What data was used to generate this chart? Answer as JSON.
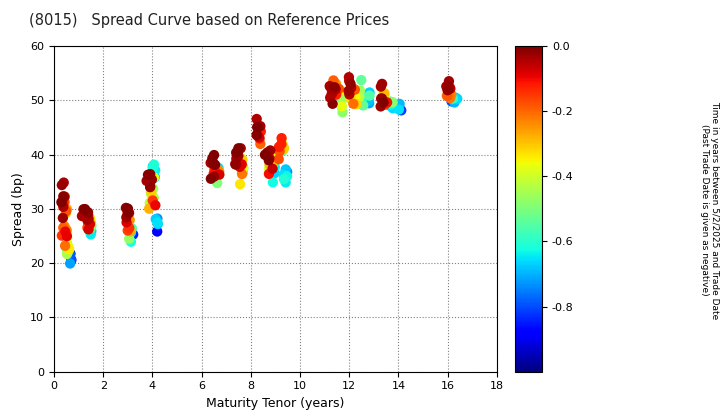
{
  "title": "(8015)   Spread Curve based on Reference Prices",
  "xlabel": "Maturity Tenor (years)",
  "ylabel": "Spread (bp)",
  "colorbar_label": "Time in years between 5/2/2025 and Trade Date\n(Past Trade Date is given as negative)",
  "xlim": [
    0,
    18
  ],
  "ylim": [
    0,
    60
  ],
  "xticks": [
    0,
    2,
    4,
    6,
    8,
    10,
    12,
    14,
    16,
    18
  ],
  "yticks": [
    0,
    10,
    20,
    30,
    40,
    50,
    60
  ],
  "cmap": "jet",
  "clim_min": -1.0,
  "clim_max": 0.0,
  "cticks": [
    0.0,
    -0.2,
    -0.4,
    -0.6,
    -0.8
  ],
  "marker_size": 55,
  "point_groups": [
    {
      "mc": 0.35,
      "sc": 32,
      "n": 8,
      "ms": 0.1,
      "sr": 8,
      "cr_min": -0.05,
      "cr_max": 0.0
    },
    {
      "mc": 0.45,
      "sc": 27,
      "n": 12,
      "ms": 0.12,
      "sr": 10,
      "cr_min": -0.3,
      "cr_max": -0.05
    },
    {
      "mc": 0.55,
      "sc": 23,
      "n": 10,
      "ms": 0.1,
      "sr": 6,
      "cr_min": -0.7,
      "cr_max": -0.3
    },
    {
      "mc": 0.65,
      "sc": 21,
      "n": 6,
      "ms": 0.08,
      "sr": 3,
      "cr_min": -0.95,
      "cr_max": -0.7
    },
    {
      "mc": 1.3,
      "sc": 29,
      "n": 8,
      "ms": 0.12,
      "sr": 4,
      "cr_min": -0.05,
      "cr_max": 0.0
    },
    {
      "mc": 1.4,
      "sc": 27,
      "n": 8,
      "ms": 0.12,
      "sr": 4,
      "cr_min": -0.4,
      "cr_max": -0.05
    },
    {
      "mc": 1.5,
      "sc": 26,
      "n": 6,
      "ms": 0.1,
      "sr": 3,
      "cr_min": -0.85,
      "cr_max": -0.4
    },
    {
      "mc": 2.95,
      "sc": 30,
      "n": 6,
      "ms": 0.1,
      "sr": 3,
      "cr_min": -0.05,
      "cr_max": 0.0
    },
    {
      "mc": 3.05,
      "sc": 27,
      "n": 8,
      "ms": 0.12,
      "sr": 4,
      "cr_min": -0.4,
      "cr_max": -0.05
    },
    {
      "mc": 3.15,
      "sc": 25,
      "n": 6,
      "ms": 0.1,
      "sr": 3,
      "cr_min": -0.9,
      "cr_max": -0.4
    },
    {
      "mc": 3.9,
      "sc": 35,
      "n": 6,
      "ms": 0.12,
      "sr": 4,
      "cr_min": -0.05,
      "cr_max": 0.0
    },
    {
      "mc": 4.0,
      "sc": 32,
      "n": 10,
      "ms": 0.15,
      "sr": 6,
      "cr_min": -0.5,
      "cr_max": -0.05
    },
    {
      "mc": 4.1,
      "sc": 37,
      "n": 6,
      "ms": 0.1,
      "sr": 4,
      "cr_min": -0.75,
      "cr_max": -0.5
    },
    {
      "mc": 4.2,
      "sc": 27,
      "n": 5,
      "ms": 0.1,
      "sr": 3,
      "cr_min": -0.9,
      "cr_max": -0.65
    },
    {
      "mc": 6.5,
      "sc": 38,
      "n": 8,
      "ms": 0.15,
      "sr": 4,
      "cr_min": -0.05,
      "cr_max": 0.0
    },
    {
      "mc": 6.6,
      "sc": 37,
      "n": 6,
      "ms": 0.12,
      "sr": 3,
      "cr_min": -0.4,
      "cr_max": -0.05
    },
    {
      "mc": 6.7,
      "sc": 36,
      "n": 5,
      "ms": 0.1,
      "sr": 3,
      "cr_min": -0.75,
      "cr_max": -0.4
    },
    {
      "mc": 7.5,
      "sc": 40,
      "n": 8,
      "ms": 0.15,
      "sr": 4,
      "cr_min": -0.05,
      "cr_max": 0.0
    },
    {
      "mc": 7.6,
      "sc": 38,
      "n": 8,
      "ms": 0.12,
      "sr": 4,
      "cr_min": -0.5,
      "cr_max": -0.05
    },
    {
      "mc": 7.7,
      "sc": 37,
      "n": 5,
      "ms": 0.1,
      "sr": 3,
      "cr_min": -0.8,
      "cr_max": -0.5
    },
    {
      "mc": 8.3,
      "sc": 45,
      "n": 6,
      "ms": 0.1,
      "sr": 3,
      "cr_min": -0.05,
      "cr_max": 0.0
    },
    {
      "mc": 8.35,
      "sc": 43,
      "n": 5,
      "ms": 0.08,
      "sr": 2,
      "cr_min": -0.3,
      "cr_max": -0.05
    },
    {
      "mc": 8.7,
      "sc": 40,
      "n": 6,
      "ms": 0.12,
      "sr": 4,
      "cr_min": -0.05,
      "cr_max": 0.0
    },
    {
      "mc": 8.8,
      "sc": 38,
      "n": 6,
      "ms": 0.12,
      "sr": 4,
      "cr_min": -0.45,
      "cr_max": -0.05
    },
    {
      "mc": 8.9,
      "sc": 37,
      "n": 5,
      "ms": 0.1,
      "sr": 3,
      "cr_min": -0.8,
      "cr_max": -0.45
    },
    {
      "mc": 9.2,
      "sc": 42,
      "n": 6,
      "ms": 0.12,
      "sr": 3,
      "cr_min": -0.25,
      "cr_max": -0.05
    },
    {
      "mc": 9.3,
      "sc": 41,
      "n": 5,
      "ms": 0.1,
      "sr": 3,
      "cr_min": -0.55,
      "cr_max": -0.25
    },
    {
      "mc": 9.4,
      "sc": 36,
      "n": 6,
      "ms": 0.1,
      "sr": 4,
      "cr_min": -0.85,
      "cr_max": -0.55
    },
    {
      "mc": 11.3,
      "sc": 51,
      "n": 8,
      "ms": 0.18,
      "sr": 3,
      "cr_min": -0.05,
      "cr_max": 0.0
    },
    {
      "mc": 11.5,
      "sc": 52,
      "n": 8,
      "ms": 0.18,
      "sr": 3,
      "cr_min": -0.35,
      "cr_max": -0.05
    },
    {
      "mc": 11.7,
      "sc": 50,
      "n": 6,
      "ms": 0.15,
      "sr": 3,
      "cr_min": -0.65,
      "cr_max": -0.35
    },
    {
      "mc": 12.0,
      "sc": 53,
      "n": 6,
      "ms": 0.15,
      "sr": 3,
      "cr_min": -0.05,
      "cr_max": 0.0
    },
    {
      "mc": 12.2,
      "sc": 51,
      "n": 6,
      "ms": 0.15,
      "sr": 3,
      "cr_min": -0.4,
      "cr_max": -0.05
    },
    {
      "mc": 12.5,
      "sc": 51,
      "n": 6,
      "ms": 0.15,
      "sr": 3,
      "cr_min": -0.65,
      "cr_max": -0.4
    },
    {
      "mc": 12.8,
      "sc": 50,
      "n": 5,
      "ms": 0.12,
      "sr": 2,
      "cr_min": -0.75,
      "cr_max": -0.55
    },
    {
      "mc": 13.3,
      "sc": 51,
      "n": 6,
      "ms": 0.15,
      "sr": 3,
      "cr_min": -0.05,
      "cr_max": 0.0
    },
    {
      "mc": 13.5,
      "sc": 50,
      "n": 5,
      "ms": 0.12,
      "sr": 3,
      "cr_min": -0.4,
      "cr_max": -0.05
    },
    {
      "mc": 13.7,
      "sc": 49,
      "n": 5,
      "ms": 0.12,
      "sr": 2,
      "cr_min": -0.8,
      "cr_max": -0.4
    },
    {
      "mc": 14.0,
      "sc": 49,
      "n": 5,
      "ms": 0.12,
      "sr": 2,
      "cr_min": -0.85,
      "cr_max": -0.6
    },
    {
      "mc": 16.0,
      "sc": 52,
      "n": 8,
      "ms": 0.15,
      "sr": 4,
      "cr_min": -0.05,
      "cr_max": 0.0
    },
    {
      "mc": 16.1,
      "sc": 51,
      "n": 6,
      "ms": 0.12,
      "sr": 3,
      "cr_min": -0.4,
      "cr_max": -0.05
    },
    {
      "mc": 16.3,
      "sc": 50,
      "n": 5,
      "ms": 0.12,
      "sr": 2,
      "cr_min": -0.9,
      "cr_max": -0.55
    }
  ]
}
